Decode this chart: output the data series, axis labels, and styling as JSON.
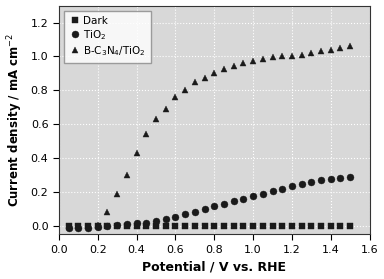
{
  "dark_x": [
    0.05,
    0.1,
    0.15,
    0.2,
    0.25,
    0.3,
    0.35,
    0.4,
    0.45,
    0.5,
    0.55,
    0.6,
    0.65,
    0.7,
    0.75,
    0.8,
    0.85,
    0.9,
    0.95,
    1.0,
    1.05,
    1.1,
    1.15,
    1.2,
    1.25,
    1.3,
    1.35,
    1.4,
    1.45,
    1.5
  ],
  "dark_y": [
    0.0,
    0.0,
    0.0,
    0.0,
    0.0,
    0.0,
    0.0,
    0.0,
    0.0,
    0.0,
    0.0,
    0.0,
    0.0,
    0.0,
    0.0,
    0.0,
    0.0,
    0.0,
    0.0,
    0.0,
    0.0,
    0.0,
    0.0,
    0.0,
    0.0,
    0.0,
    0.0,
    0.0,
    0.0,
    0.0
  ],
  "tio2_x": [
    0.05,
    0.1,
    0.15,
    0.2,
    0.25,
    0.3,
    0.35,
    0.4,
    0.45,
    0.5,
    0.55,
    0.6,
    0.65,
    0.7,
    0.75,
    0.8,
    0.85,
    0.9,
    0.95,
    1.0,
    1.05,
    1.1,
    1.15,
    1.2,
    1.25,
    1.3,
    1.35,
    1.4,
    1.45,
    1.5
  ],
  "tio2_y": [
    -0.01,
    -0.01,
    -0.01,
    -0.005,
    0.0,
    0.005,
    0.01,
    0.015,
    0.02,
    0.03,
    0.04,
    0.055,
    0.07,
    0.085,
    0.1,
    0.115,
    0.13,
    0.145,
    0.16,
    0.175,
    0.19,
    0.205,
    0.22,
    0.235,
    0.25,
    0.26,
    0.27,
    0.275,
    0.285,
    0.29
  ],
  "bcn_tio2_x": [
    0.05,
    0.1,
    0.15,
    0.2,
    0.25,
    0.3,
    0.35,
    0.4,
    0.45,
    0.5,
    0.55,
    0.6,
    0.65,
    0.7,
    0.75,
    0.8,
    0.85,
    0.9,
    0.95,
    1.0,
    1.05,
    1.1,
    1.15,
    1.2,
    1.25,
    1.3,
    1.35,
    1.4,
    1.45,
    1.5
  ],
  "bcn_tio2_y": [
    -0.005,
    0.0,
    0.0,
    0.005,
    0.08,
    0.19,
    0.3,
    0.43,
    0.54,
    0.63,
    0.69,
    0.76,
    0.8,
    0.85,
    0.875,
    0.9,
    0.925,
    0.945,
    0.96,
    0.975,
    0.985,
    0.995,
    1.0,
    1.005,
    1.01,
    1.02,
    1.03,
    1.04,
    1.05,
    1.06
  ],
  "xlabel": "Potential / V vs. RHE",
  "ylabel": "Current density / mA cm$^{-2}$",
  "xlim": [
    0.0,
    1.6
  ],
  "ylim": [
    -0.05,
    1.3
  ],
  "xticks": [
    0.0,
    0.2,
    0.4,
    0.6,
    0.8,
    1.0,
    1.2,
    1.4,
    1.6
  ],
  "yticks": [
    0.0,
    0.2,
    0.4,
    0.6,
    0.8,
    1.0,
    1.2
  ],
  "legend_dark": "Dark",
  "legend_tio2": "TiO$_2$",
  "legend_bcn": "B-C$_3$N$_4$/TiO$_2$",
  "marker_size_dark": 4,
  "marker_size_tio2": 5,
  "marker_size_bcn": 5,
  "bg_color": "#d8d8d8",
  "line_color": "#1a1a1a",
  "grid_color": "#ffffff"
}
